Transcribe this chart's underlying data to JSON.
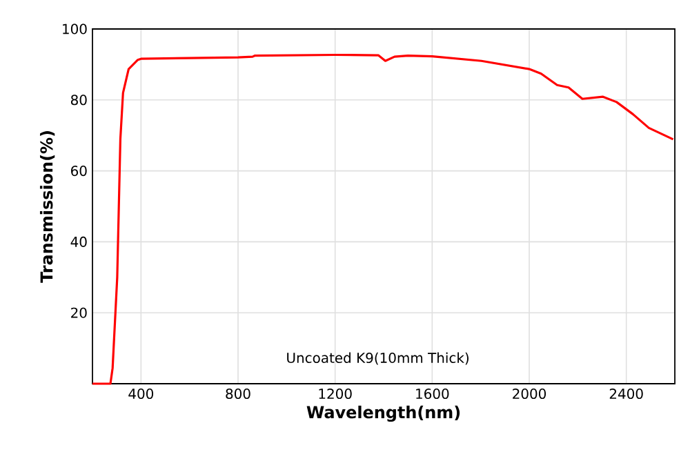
{
  "chart_data": {
    "type": "line",
    "xlabel": "Wavelength(nm)",
    "ylabel": "Transmission(%)",
    "annotations": [
      "Uncoated K9(10mm Thick)"
    ],
    "xlim": [
      200,
      2600
    ],
    "ylim": [
      0,
      100
    ],
    "xticks": [
      400,
      800,
      1200,
      1600,
      2000,
      2400
    ],
    "yticks": [
      20,
      40,
      60,
      80,
      100
    ],
    "grid": true,
    "series": [
      {
        "color": "#ff0000",
        "x": [
          200,
          274,
          283,
          302,
          315,
          326,
          349,
          387,
          400,
          600,
          800,
          860,
          870,
          1200,
          1378,
          1407,
          1445,
          1500,
          1600,
          1803,
          2000,
          2049,
          2115,
          2162,
          2219,
          2304,
          2360,
          2427,
          2493,
          2593
        ],
        "values": [
          0,
          0,
          4.4,
          30,
          69,
          82,
          88.7,
          91.3,
          91.6,
          91.8,
          92.0,
          92.2,
          92.5,
          92.7,
          92.6,
          91.0,
          92.2,
          92.5,
          92.3,
          91.0,
          88.7,
          87.4,
          84.2,
          83.5,
          80.3,
          80.9,
          79.4,
          76.0,
          72.1,
          68.9
        ]
      }
    ]
  }
}
